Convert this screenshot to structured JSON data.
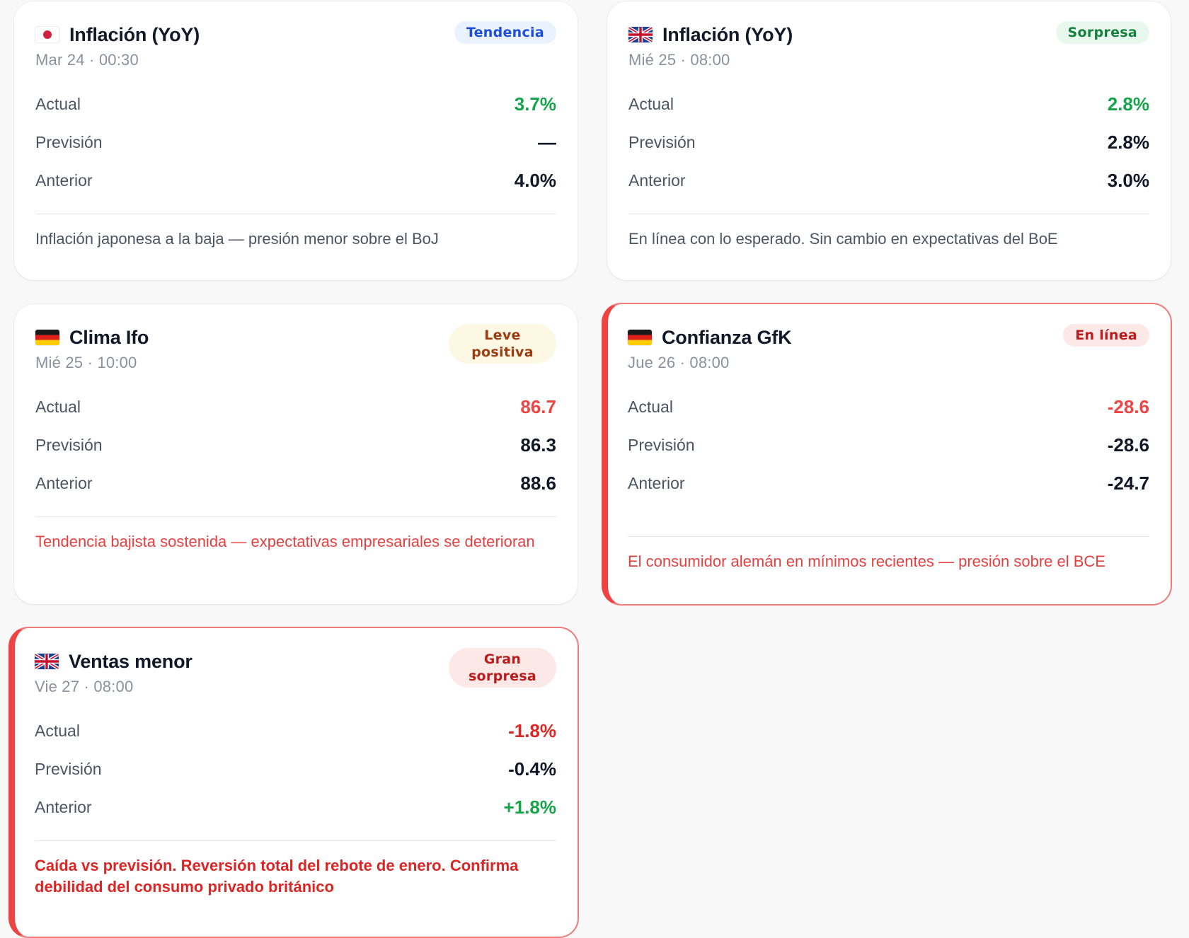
{
  "cards": [
    {
      "flag": "japan-flag",
      "title": "Inflación (YoY)",
      "badge": "Tendencia",
      "date": "Mar 24 · 00:30",
      "rows": [
        {
          "label": "Actual",
          "value": "3.7%"
        },
        {
          "label": "Previsión",
          "value": "—"
        },
        {
          "label": "Anterior",
          "value": "4.0%"
        }
      ],
      "note": "Inflación japonesa a la baja — presión menor sobre el BoJ"
    },
    {
      "flag": "uk-flag",
      "title": "Inflación (YoY)",
      "badge": "Sorpresa",
      "date": "Mié 25 · 08:00",
      "rows": [
        {
          "label": "Actual",
          "value": "2.8%"
        },
        {
          "label": "Previsión",
          "value": "2.8%"
        },
        {
          "label": "Anterior",
          "value": "3.0%"
        }
      ],
      "note": "En línea con lo esperado. Sin cambio en expectativas del BoE"
    },
    {
      "flag": "germany-flag",
      "title": "Clima Ifo",
      "badge": "Leve positiva",
      "date": "Mié 25 · 10:00",
      "rows": [
        {
          "label": "Actual",
          "value": "86.7"
        },
        {
          "label": "Previsión",
          "value": "86.3"
        },
        {
          "label": "Anterior",
          "value": "88.6"
        }
      ],
      "note": "Tendencia bajista sostenida — expectativas empresariales se deterioran"
    },
    {
      "flag": "germany-flag",
      "title": "Confianza GfK",
      "badge": "En línea",
      "date": "Jue 26 · 08:00",
      "rows": [
        {
          "label": "Actual",
          "value": "-28.6"
        },
        {
          "label": "Previsión",
          "value": "-28.6"
        },
        {
          "label": "Anterior",
          "value": "-24.7"
        }
      ],
      "note": "El consumidor alemán en mínimos recientes — presión sobre el BCE"
    },
    {
      "flag": "uk-flag",
      "title": "Ventas menor",
      "badge": "Gran sorpresa",
      "date": "Vie 27 · 08:00",
      "rows": [
        {
          "label": "Actual",
          "value": "-1.8%"
        },
        {
          "label": "Previsión",
          "value": "-0.4%"
        },
        {
          "label": "Anterior",
          "value": "+1.8%"
        }
      ],
      "note": "Caída vs previsión. Reversión total del rebote de enero. Confirma debilidad del consumo privado británico"
    }
  ],
  "colors": {
    "positive": "#16a34a",
    "negative": "#ef4444",
    "alert_border": "#ef4444"
  }
}
